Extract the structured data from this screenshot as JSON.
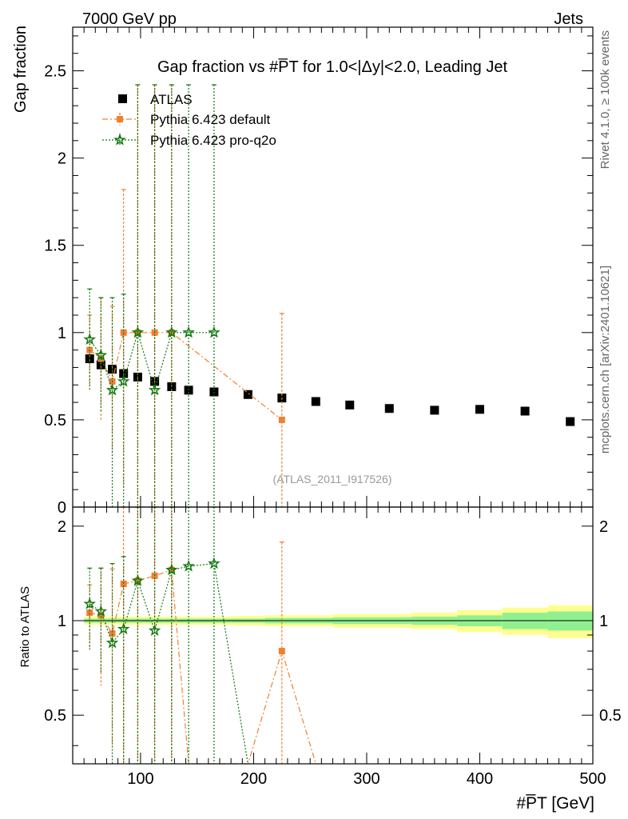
{
  "header": {
    "left": "7000 GeV pp",
    "right": "Jets",
    "plot_title": "Gap fraction vs #P̅T for 1.0<|Δy|<2.0, Leading Jet",
    "side_label_top": "Rivet 4.1.0, ≥ 100k events",
    "side_label_bottom": "mcplots.cern.ch [arXiv:2401.10621]",
    "watermark": "(ATLAS_2011_I917526)"
  },
  "colors": {
    "atlas": "#000000",
    "default": "#f08030",
    "proq2o": "#107810",
    "band_inner": "#90f090",
    "band_outer": "#ffff90"
  },
  "chart_data": [
    {
      "type": "scatter",
      "panel": "main",
      "title": "Gap fraction vs #P̅T for 1.0<|Δy|<2.0, Leading Jet",
      "xlabel": "#P̅T [GeV]",
      "ylabel": "Gap fraction",
      "xlim": [
        40,
        500
      ],
      "ylim": [
        0,
        2.75
      ],
      "xticks": [
        100,
        200,
        300,
        400,
        500
      ],
      "yticks": [
        0.5,
        1,
        1.5,
        2,
        2.5
      ],
      "legend_position": "top-left",
      "series": [
        {
          "name": "ATLAS",
          "marker": "square",
          "x": [
            55,
            65,
            75,
            85,
            97.5,
            112.5,
            127.5,
            142.5,
            165,
            195,
            225,
            255,
            285,
            320,
            360,
            400,
            440,
            480
          ],
          "y": [
            0.85,
            0.815,
            0.79,
            0.765,
            0.745,
            0.72,
            0.69,
            0.67,
            0.66,
            0.645,
            0.625,
            0.605,
            0.585,
            0.565,
            0.555,
            0.56,
            0.55,
            0.49
          ],
          "yerr": [
            0.02,
            0.02,
            0.02,
            0.02,
            0.02,
            0.02,
            0.02,
            0.02,
            0.02,
            0.02,
            0.02,
            0.02,
            0.02,
            0.02,
            0.02,
            0.02,
            0.02,
            0.02
          ]
        },
        {
          "name": "Pythia 6.423 default",
          "marker": "square-small",
          "x": [
            55,
            65,
            75,
            85,
            97.5,
            112.5,
            127.5,
            225
          ],
          "y": [
            0.9,
            0.85,
            0.72,
            1.0,
            1.0,
            1.0,
            1.0,
            0.5
          ],
          "ylo": [
            0.7,
            0.5,
            0.3,
            0.1,
            0.0,
            0.0,
            0.0,
            0.0
          ],
          "yhi": [
            1.1,
            1.2,
            1.15,
            1.82,
            2.42,
            2.42,
            2.42,
            1.11
          ]
        },
        {
          "name": "Pythia 6.423 pro-q2o",
          "marker": "star",
          "x": [
            55,
            65,
            75,
            85,
            97.5,
            112.5,
            127.5,
            142.5,
            165
          ],
          "y": [
            0.96,
            0.87,
            0.67,
            0.72,
            1.0,
            0.67,
            1.0,
            1.0,
            1.0
          ],
          "ylo": [
            0.67,
            0.55,
            0.0,
            0.0,
            0.0,
            0.0,
            0.0,
            0.0,
            0.0
          ],
          "yhi": [
            1.25,
            1.2,
            1.2,
            1.22,
            2.42,
            2.42,
            2.42,
            2.42,
            2.42
          ]
        }
      ]
    },
    {
      "type": "line",
      "panel": "ratio",
      "ylabel": "Ratio to ATLAS",
      "xlabel": "#P̅T [GeV]",
      "xlim": [
        40,
        500
      ],
      "ylim": [
        0.35,
        2.3
      ],
      "yticks": [
        0.5,
        1,
        2
      ],
      "xticks": [
        100,
        200,
        300,
        400,
        500
      ],
      "band": {
        "edges": [
          50,
          60,
          70,
          80,
          90,
          105,
          120,
          135,
          150,
          180,
          210,
          240,
          270,
          300,
          340,
          380,
          420,
          460,
          500
        ],
        "inner": [
          0.015,
          0.015,
          0.015,
          0.015,
          0.015,
          0.015,
          0.015,
          0.015,
          0.015,
          0.015,
          0.02,
          0.02,
          0.025,
          0.025,
          0.03,
          0.04,
          0.06,
          0.07,
          0.08
        ],
        "outer": [
          0.03,
          0.03,
          0.03,
          0.03,
          0.03,
          0.03,
          0.03,
          0.03,
          0.03,
          0.035,
          0.04,
          0.04,
          0.05,
          0.05,
          0.06,
          0.08,
          0.1,
          0.12,
          0.13
        ]
      },
      "series": [
        {
          "name": "Pythia 6.423 default",
          "x": [
            55,
            65,
            75,
            85,
            97.5,
            112.5,
            127.5,
            225
          ],
          "y": [
            1.06,
            1.04,
            0.91,
            1.31,
            1.34,
            1.39,
            1.45,
            0.8
          ],
          "ylo": [
            0.82,
            0.62,
            0.4,
            0.1,
            0.0,
            0.0,
            0.0,
            0.0
          ],
          "yhi": [
            1.3,
            1.47,
            1.46,
            2.38,
            3.25,
            3.36,
            3.5,
            1.78
          ],
          "line_x": [
            55,
            65,
            75,
            85,
            97.5,
            112.5,
            127.5,
            142.5,
            195,
            225,
            255
          ],
          "line_y": [
            1.06,
            1.04,
            0.91,
            1.31,
            1.34,
            1.39,
            1.45,
            0.0,
            0.0,
            0.8,
            0.0
          ]
        },
        {
          "name": "Pythia 6.423 pro-q2o",
          "x": [
            55,
            65,
            75,
            85,
            97.5,
            112.5,
            127.5,
            142.5,
            165
          ],
          "y": [
            1.13,
            1.07,
            0.85,
            0.94,
            1.34,
            0.93,
            1.45,
            1.49,
            1.52
          ],
          "ylo": [
            0.8,
            0.68,
            0.0,
            0.0,
            0.0,
            0.0,
            0.0,
            0.0,
            0.0
          ],
          "yhi": [
            1.47,
            1.47,
            1.52,
            1.6,
            3.25,
            3.36,
            3.5,
            3.6,
            3.67
          ],
          "line_x": [
            55,
            65,
            75,
            85,
            97.5,
            112.5,
            127.5,
            142.5,
            165,
            195
          ],
          "line_y": [
            1.13,
            1.07,
            0.85,
            0.94,
            1.34,
            0.93,
            1.45,
            1.49,
            1.52,
            0.0
          ]
        }
      ]
    }
  ]
}
